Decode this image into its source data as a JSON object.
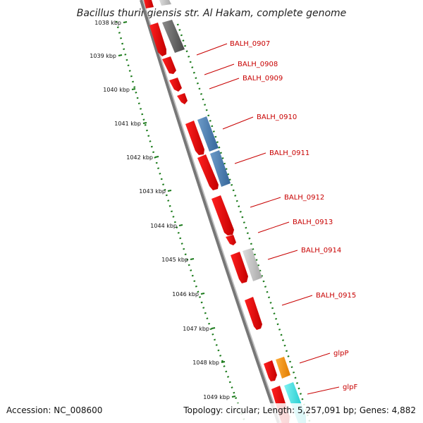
{
  "title": "Bacillus thuringiensis str. Al Hakam, complete genome",
  "footer": {
    "accession": "Accession: NC_008600",
    "summary": "Topology: circular; Length: 5,257,091 bp; Genes: 4,882"
  },
  "colors": {
    "forward_gene": "#ff0000",
    "reverse_gene": "#ff0000",
    "backbone": "#888888",
    "kbp_ticks": "#1a7a1a",
    "label": "#c80000"
  },
  "kbp_labels": [
    "1038 kbp",
    "1039 kbp",
    "1040 kbp",
    "1041 kbp",
    "1042 kbp",
    "1043 kbp",
    "1044 kbp",
    "1045 kbp",
    "1046 kbp",
    "1047 kbp",
    "1048 kbp",
    "1049 kbp"
  ],
  "gene_labels": [
    "BALH_0907",
    "BALH_0908",
    "BALH_0909",
    "BALH_0910",
    "BALH_0911",
    "BALH_0912",
    "BALH_0913",
    "BALH_0914",
    "BALH_0915",
    "glpP",
    "glpF"
  ]
}
